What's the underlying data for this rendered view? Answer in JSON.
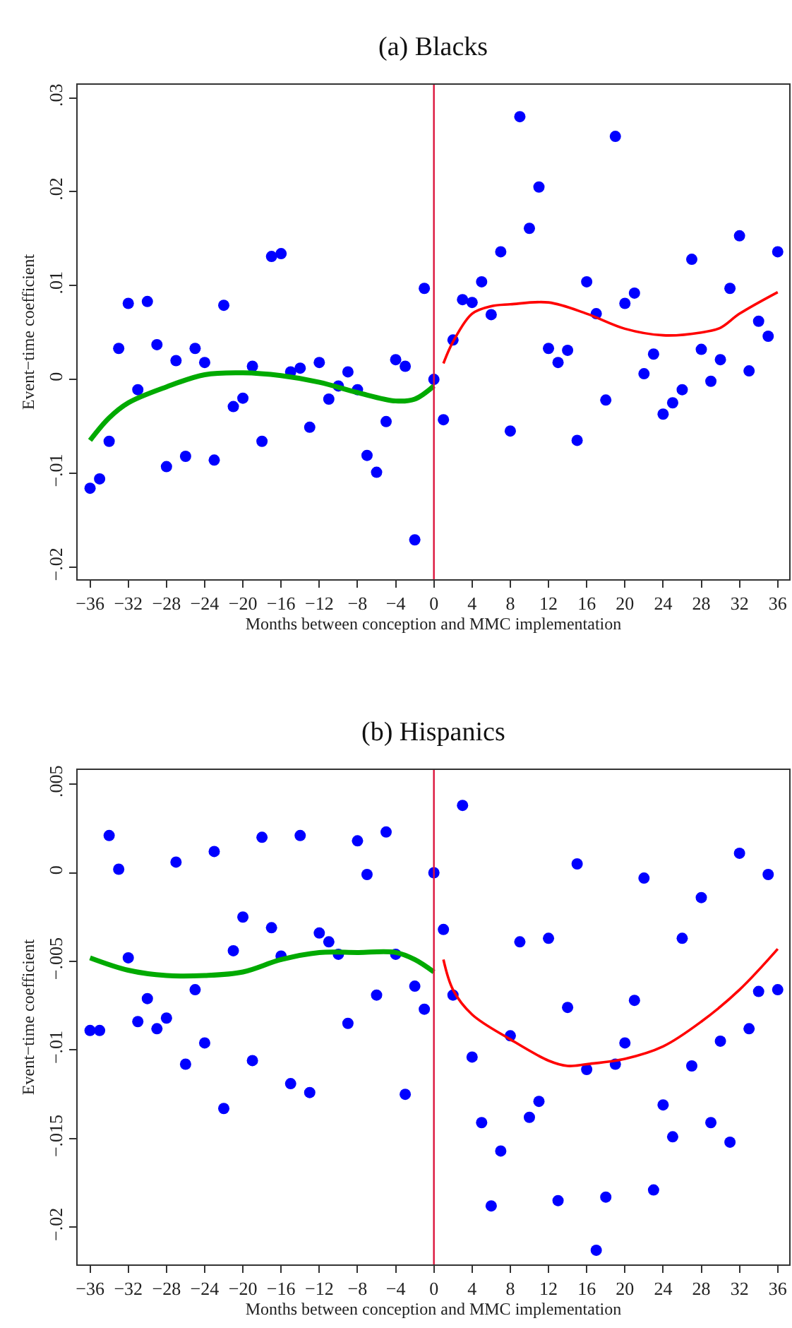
{
  "chart_data": [
    {
      "type": "scatter",
      "title": "(a) Blacks",
      "xlabel": "Months between conception and MMC implementation",
      "ylabel": "Event−time coefficient",
      "xlim": [
        -37.3,
        37.2
      ],
      "xticks": [
        {
          "value": -36,
          "label": "−36"
        },
        {
          "value": -32,
          "label": "−32"
        },
        {
          "value": -28,
          "label": "−28"
        },
        {
          "value": -24,
          "label": "−24"
        },
        {
          "value": -20,
          "label": "−20"
        },
        {
          "value": -16,
          "label": "−16"
        },
        {
          "value": -12,
          "label": "−12"
        },
        {
          "value": -8,
          "label": "−8"
        },
        {
          "value": -4,
          "label": "−4"
        },
        0,
        4,
        8,
        12,
        16,
        20,
        24,
        28,
        32,
        36
      ],
      "ylim": [
        -0.0213,
        0.0314
      ],
      "yticks": [
        {
          "value": -0.02,
          "label": "−.02"
        },
        {
          "value": -0.01,
          "label": "−.01"
        },
        0,
        {
          "value": 0.01,
          "label": ".01"
        },
        {
          "value": 0.02,
          "label": ".02"
        },
        {
          "value": 0.03,
          "label": ".03"
        }
      ],
      "ref_lines": [
        {
          "axis": "x",
          "value": 0,
          "color": "#dc143c"
        }
      ],
      "series": [
        {
          "marker": "circle",
          "color": "#0000ff",
          "x": [
            -36,
            -35,
            -34,
            -33,
            -32,
            -31,
            -30,
            -29,
            -28,
            -27,
            -26,
            -25,
            -24,
            -23,
            -22,
            -21,
            -20,
            -19,
            -18,
            -17,
            -16,
            -15,
            -14,
            -13,
            -12,
            -11,
            -10,
            -9,
            -8,
            -7,
            -6,
            -5,
            -4,
            -3,
            -2,
            -1,
            0,
            1,
            2,
            3,
            4,
            5,
            6,
            7,
            8,
            9,
            10,
            11,
            12,
            13,
            14,
            15,
            16,
            17,
            18,
            19,
            20,
            21,
            22,
            23,
            24,
            25,
            26,
            27,
            28,
            29,
            30,
            31,
            32,
            33,
            34,
            35,
            36
          ],
          "values": [
            -0.0116,
            -0.0106,
            -0.0066,
            0.0033,
            0.0081,
            -0.0011,
            0.0083,
            0.0037,
            -0.0093,
            0.002,
            -0.0082,
            0.0033,
            0.0018,
            -0.0086,
            0.0079,
            -0.0029,
            -0.002,
            0.0014,
            -0.0066,
            0.0131,
            0.0134,
            0.0008,
            0.0012,
            -0.0051,
            0.0018,
            -0.0021,
            -0.0007,
            0.0008,
            -0.0011,
            -0.0081,
            -0.0099,
            -0.0045,
            0.0021,
            0.0014,
            -0.0171,
            0.0097,
            0,
            -0.0043,
            0.0042,
            0.0085,
            0.0082,
            0.0104,
            0.0069,
            0.0136,
            -0.0055,
            0.028,
            0.0161,
            0.0205,
            0.0033,
            0.0018,
            0.0031,
            -0.0065,
            0.0104,
            0.007,
            -0.0022,
            0.0259,
            0.0081,
            0.0092,
            0.0006,
            0.0027,
            -0.0037,
            -0.0025,
            -0.0011,
            0.0128,
            0.0032,
            -0.0002,
            0.0021,
            0.0097,
            0.0153,
            0.0009,
            0.0062,
            0.0046,
            0.0136
          ]
        },
        {
          "type": "line",
          "color": "#00aa00",
          "x": [
            -36,
            -34,
            -32,
            -28,
            -24,
            -20,
            -16,
            -12,
            -8,
            -4,
            -2,
            0
          ],
          "values": [
            -0.0065,
            -0.0041,
            -0.0025,
            -0.0008,
            0.0005,
            0.0007,
            0.0004,
            -0.0003,
            -0.0014,
            -0.0023,
            -0.0021,
            -0.0007
          ]
        },
        {
          "type": "line",
          "color": "#ff0000",
          "x": [
            1,
            2,
            4,
            6,
            8,
            12,
            16,
            20,
            24,
            28,
            30,
            32,
            36
          ],
          "values": [
            0.0017,
            0.004,
            0.007,
            0.0078,
            0.008,
            0.0082,
            0.007,
            0.0054,
            0.0047,
            0.005,
            0.0055,
            0.007,
            0.0093
          ]
        }
      ]
    },
    {
      "type": "scatter",
      "title": "(b) Hispanics",
      "xlabel": "Months between conception and MMC implementation",
      "ylabel": "Event−time coefficient",
      "xlim": [
        -37.3,
        37.2
      ],
      "xticks": [
        {
          "value": -36,
          "label": "−36"
        },
        {
          "value": -32,
          "label": "−32"
        },
        {
          "value": -28,
          "label": "−28"
        },
        {
          "value": -24,
          "label": "−24"
        },
        {
          "value": -20,
          "label": "−20"
        },
        {
          "value": -16,
          "label": "−16"
        },
        {
          "value": -12,
          "label": "−12"
        },
        {
          "value": -8,
          "label": "−8"
        },
        {
          "value": -4,
          "label": "−4"
        },
        0,
        4,
        8,
        12,
        16,
        20,
        24,
        28,
        32,
        36
      ],
      "ylim": [
        -0.0221,
        0.0058
      ],
      "yticks": [
        {
          "value": -0.02,
          "label": "−.02"
        },
        {
          "value": -0.015,
          "label": "−.015"
        },
        {
          "value": -0.01,
          "label": "−.01"
        },
        {
          "value": -0.005,
          "label": "−.005"
        },
        0,
        {
          "value": 0.005,
          "label": ".005"
        }
      ],
      "ref_lines": [
        {
          "axis": "x",
          "value": 0,
          "color": "#dc143c"
        }
      ],
      "series": [
        {
          "marker": "circle",
          "color": "#0000ff",
          "x": [
            -36,
            -35,
            -34,
            -33,
            -32,
            -31,
            -30,
            -29,
            -28,
            -27,
            -26,
            -25,
            -24,
            -23,
            -22,
            -21,
            -20,
            -19,
            -18,
            -17,
            -16,
            -15,
            -14,
            -13,
            -12,
            -11,
            -10,
            -9,
            -8,
            -7,
            -6,
            -5,
            -4,
            -3,
            -2,
            -1,
            0,
            1,
            2,
            3,
            4,
            5,
            6,
            7,
            8,
            9,
            10,
            11,
            12,
            13,
            14,
            15,
            16,
            17,
            18,
            19,
            20,
            21,
            22,
            23,
            24,
            25,
            26,
            27,
            28,
            29,
            30,
            31,
            32,
            33,
            34,
            35,
            36
          ],
          "values": [
            -0.0089,
            -0.0089,
            0.0021,
            0.0002,
            -0.0048,
            -0.0084,
            -0.0071,
            -0.0088,
            -0.0082,
            0.0006,
            -0.0108,
            -0.0066,
            -0.0096,
            0.0012,
            -0.0133,
            -0.0044,
            -0.0025,
            -0.0106,
            0.002,
            -0.0031,
            -0.0047,
            -0.0119,
            0.0021,
            -0.0124,
            -0.0034,
            -0.0039,
            -0.0046,
            -0.0085,
            0.0018,
            -0.0001,
            -0.0069,
            0.0023,
            -0.0046,
            -0.0125,
            -0.0064,
            -0.0077,
            0,
            -0.0032,
            -0.0069,
            0.0038,
            -0.0104,
            -0.0141,
            -0.0188,
            -0.0157,
            -0.0092,
            -0.0039,
            -0.0138,
            -0.0129,
            -0.0037,
            -0.0185,
            -0.0076,
            0.0005,
            -0.0111,
            -0.0213,
            -0.0183,
            -0.0108,
            -0.0096,
            -0.0072,
            -0.0003,
            -0.0179,
            -0.0131,
            -0.0149,
            -0.0037,
            -0.0109,
            -0.0014,
            -0.0141,
            -0.0095,
            -0.0152,
            0.0011,
            -0.0088,
            -0.0067,
            -0.0001,
            -0.0066
          ]
        },
        {
          "type": "line",
          "color": "#00aa00",
          "x": [
            -36,
            -32,
            -28,
            -24,
            -20,
            -16,
            -12,
            -8,
            -4,
            -2,
            0
          ],
          "values": [
            -0.0048,
            -0.0055,
            -0.0058,
            -0.0058,
            -0.0056,
            -0.0049,
            -0.0045,
            -0.0045,
            -0.0045,
            -0.0049,
            -0.0056
          ]
        },
        {
          "type": "line",
          "color": "#ff0000",
          "x": [
            1,
            2,
            4,
            8,
            12,
            14,
            16,
            20,
            24,
            28,
            32,
            36
          ],
          "values": [
            -0.0049,
            -0.0066,
            -0.008,
            -0.0094,
            -0.0106,
            -0.0109,
            -0.0108,
            -0.0105,
            -0.0098,
            -0.0084,
            -0.0066,
            -0.0043
          ]
        }
      ]
    }
  ]
}
